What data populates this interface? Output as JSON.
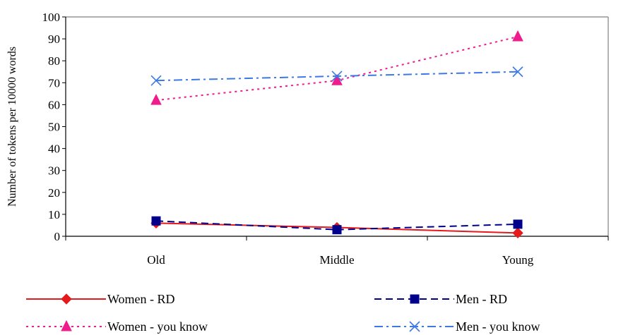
{
  "chart_data": {
    "type": "line",
    "title": "",
    "xlabel": "",
    "ylabel": "Number of tokens per 10000 words",
    "categories": [
      "Old",
      "Middle",
      "Young"
    ],
    "ylim": [
      0,
      100
    ],
    "yticks": [
      0,
      10,
      20,
      30,
      40,
      50,
      60,
      70,
      80,
      90,
      100
    ],
    "grid": false,
    "legend_position": "bottom",
    "series": [
      {
        "name": "Women - RD",
        "values": [
          6,
          4,
          1.5
        ],
        "color": "#e41a1c",
        "line": "solid",
        "marker": "diamond"
      },
      {
        "name": "Men - RD",
        "values": [
          7,
          3,
          5.5
        ],
        "color": "#00008b",
        "line": "dashed",
        "marker": "square"
      },
      {
        "name": "Women - you know",
        "values": [
          62,
          71,
          91
        ],
        "color": "#ee1c8c",
        "line": "dotted",
        "marker": "triangle"
      },
      {
        "name": "Men - you know",
        "values": [
          71,
          73,
          75
        ],
        "color": "#3c78e6",
        "line": "dashdot",
        "marker": "x"
      }
    ]
  }
}
